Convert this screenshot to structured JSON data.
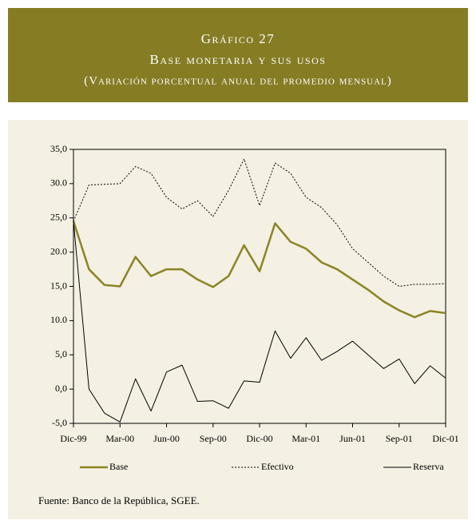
{
  "chart_data": {
    "type": "line",
    "title": "Gráfico 27",
    "subtitle": "Base monetaria y sus usos",
    "note": "(Variación porcentual anual del promedio mensual)",
    "source": "Fuente: Banco de la República, SGEE.",
    "categories": [
      "Dic-99",
      null,
      null,
      "Mar-00",
      null,
      null,
      "Jun-00",
      null,
      null,
      "Sep-00",
      null,
      null,
      "Dic-00",
      null,
      null,
      "Mar-01",
      null,
      null,
      "Jun-01",
      null,
      null,
      "Sep-01",
      null,
      null,
      "Dic-01"
    ],
    "ylim": [
      -5,
      35
    ],
    "yticks": [
      {
        "value": -5,
        "label": "-5,0"
      },
      {
        "value": 0,
        "label": "0,0"
      },
      {
        "value": 5,
        "label": "5,0"
      },
      {
        "value": 10,
        "label": "10.0"
      },
      {
        "value": 15,
        "label": "15,0"
      },
      {
        "value": 20,
        "label": "20.0"
      },
      {
        "value": 25,
        "label": "25,0"
      },
      {
        "value": 30,
        "label": "30.0"
      },
      {
        "value": 35,
        "label": "35,0"
      }
    ],
    "series": [
      {
        "name": "Base",
        "color": "#8b8423",
        "values": [
          24.5,
          17.5,
          15.2,
          15.0,
          19.3,
          16.5,
          17.5,
          17.5,
          16.0,
          14.9,
          16.5,
          21.0,
          17.2,
          24.2,
          21.5,
          20.5,
          18.5,
          17.5,
          16.0,
          14.5,
          12.8,
          11.5,
          10.5,
          11.4,
          11.1
        ]
      },
      {
        "name": "Efectivo",
        "color": "#000000",
        "dashed": true,
        "values": [
          24.5,
          29.8,
          29.9,
          30.0,
          32.5,
          31.5,
          28.0,
          26.3,
          27.5,
          25.2,
          29.0,
          33.6,
          26.8,
          33.0,
          31.5,
          28.0,
          26.5,
          24.0,
          20.5,
          18.5,
          16.5,
          15.0,
          15.3,
          15.3,
          15.4
        ]
      },
      {
        "name": "Reserva",
        "color": "#000000",
        "values": [
          24.5,
          0.0,
          -3.5,
          -4.8,
          1.5,
          -3.2,
          2.5,
          3.5,
          -1.8,
          -1.7,
          -2.8,
          1.2,
          1.0,
          8.5,
          4.5,
          7.5,
          4.2,
          5.5,
          7.0,
          5.0,
          3.0,
          4.4,
          0.8,
          3.4,
          1.6
        ]
      }
    ]
  }
}
